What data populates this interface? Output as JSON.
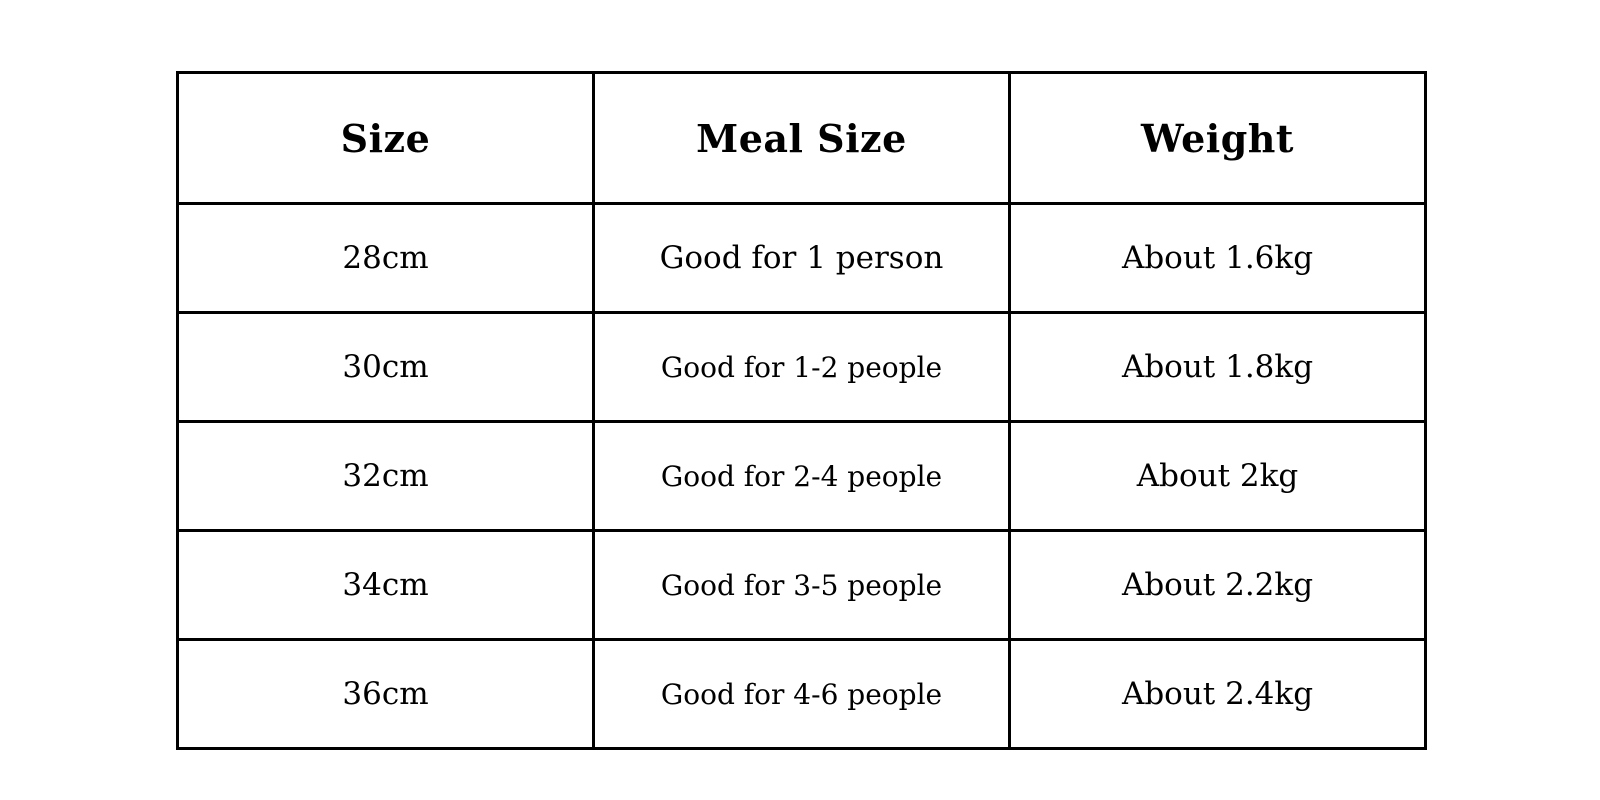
{
  "table": {
    "header": [
      "Size",
      "Meal Size",
      "Weight"
    ],
    "rows": [
      [
        "28cm",
        "Good for 1 person",
        "About 1.6kg"
      ],
      [
        "30cm",
        "Good for 1-2 people",
        "About 1.8kg"
      ],
      [
        "32cm",
        "Good for 2-4 people",
        "About 2kg"
      ],
      [
        "34cm",
        "Good for 3-5 people",
        "About 2.2kg"
      ],
      [
        "36cm",
        "Good for 4-6 people",
        "About 2.4kg"
      ]
    ]
  }
}
